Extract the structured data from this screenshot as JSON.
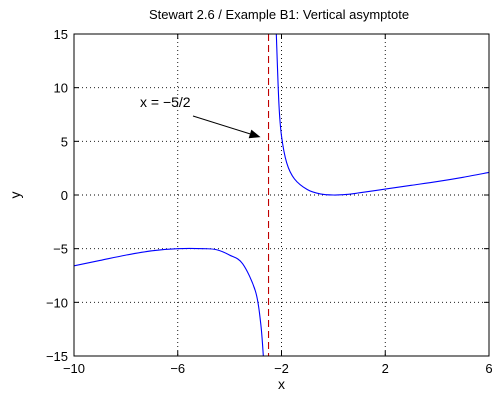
{
  "chart_data": {
    "type": "line",
    "title": "Stewart 2.6 / Example B1: Vertical asymptote",
    "xlabel": "x",
    "ylabel": "y",
    "xlim": [
      -10,
      6
    ],
    "ylim": [
      -15,
      15
    ],
    "xticks": [
      -10,
      -6,
      -2,
      2,
      6
    ],
    "xtick_labels": [
      "−10",
      "−6",
      "−2",
      "2",
      "6"
    ],
    "yticks": [
      -15,
      -10,
      -5,
      0,
      5,
      10,
      15
    ],
    "ytick_labels": [
      "−15",
      "−10",
      "−5",
      "0",
      "5",
      "10",
      "15"
    ],
    "grid": true,
    "asymptote": {
      "x": -2.5,
      "color": "#c00000",
      "style": "dashed"
    },
    "annotation": {
      "text": "x = −5/2",
      "arrow_to": [
        -2.5,
        5.2
      ]
    },
    "series": [
      {
        "color": "#0000ff",
        "x": [
          -10,
          -9,
          -8,
          -7,
          -6,
          -5,
          -4.5,
          -4,
          -3.5,
          -3,
          -2.8,
          -2.7
        ],
        "y": [
          -6.6,
          -6.1,
          -5.6,
          -5.2,
          -5.0,
          -5.0,
          -5.1,
          -5.6,
          -6.4,
          -9.0,
          -12.0,
          -15.0
        ]
      },
      {
        "color": "#0000ff",
        "x": [
          -2.2,
          -2.1,
          -2.0,
          -1.8,
          -1.5,
          -1.0,
          -0.5,
          0,
          0.5,
          1,
          2,
          3,
          4,
          5,
          6
        ],
        "y": [
          15.0,
          8.5,
          5.5,
          3.0,
          1.5,
          0.5,
          0.1,
          0.0,
          0.05,
          0.2,
          0.55,
          0.9,
          1.25,
          1.65,
          2.1
        ]
      }
    ]
  }
}
